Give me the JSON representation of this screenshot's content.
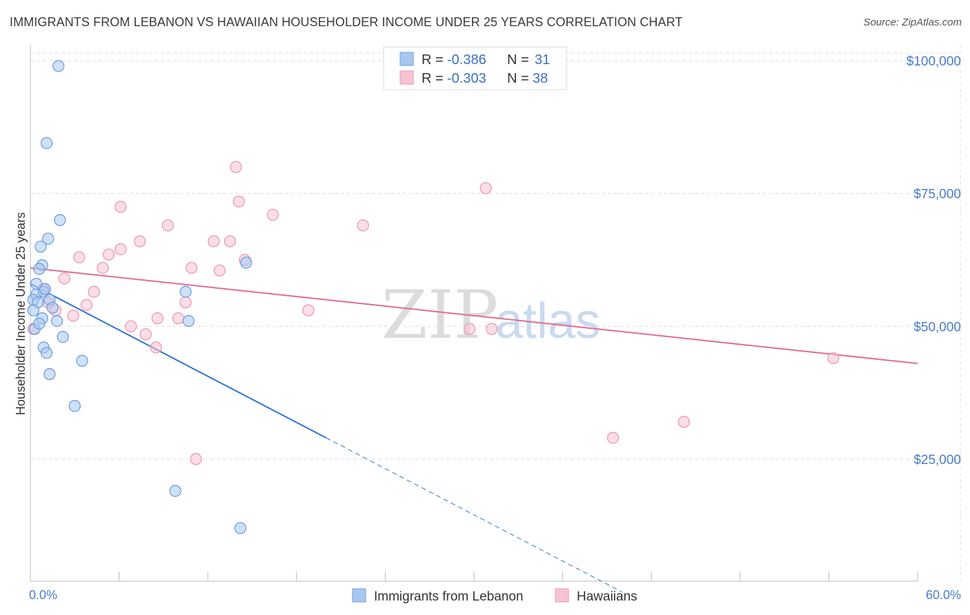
{
  "title": "IMMIGRANTS FROM LEBANON VS HAWAIIAN HOUSEHOLDER INCOME UNDER 25 YEARS CORRELATION CHART",
  "source": "Source: ZipAtlas.com",
  "watermark": {
    "zip": "ZIP",
    "atlas": "atlas"
  },
  "colors": {
    "lebanon_fill": "#a9c8f0",
    "lebanon_stroke": "#6a9ee0",
    "lebanon_line": "#2f72d1",
    "hawaiian_fill": "#f7c3d3",
    "hawaiian_stroke": "#eb97b2",
    "hawaiian_line": "#e06c96",
    "grid": "#dcdcdc",
    "axis_text": "#4a7cc9"
  },
  "legend": {
    "rows": [
      {
        "r_label": "R = ",
        "r_value": "-0.386",
        "n_label": "N = ",
        "n_value": "31"
      },
      {
        "r_label": "R = ",
        "r_value": "-0.303",
        "n_label": "N = ",
        "n_value": "38"
      }
    ]
  },
  "chart_data": {
    "type": "scatter",
    "title": "IMMIGRANTS FROM LEBANON VS HAWAIIAN HOUSEHOLDER INCOME UNDER 25 YEARS CORRELATION CHART",
    "xlabel": "",
    "ylabel": "Householder Income Under 25 years",
    "xlim": [
      0,
      60
    ],
    "ylim": [
      2000,
      103000
    ],
    "x_tick_labels": [
      "0.0%",
      "60.0%"
    ],
    "y_ticks": [
      {
        "value": 25000,
        "label": "$25,000"
      },
      {
        "value": 50000,
        "label": "$50,000"
      },
      {
        "value": 75000,
        "label": "$75,000"
      },
      {
        "value": 100000,
        "label": "$100,000"
      }
    ],
    "grid": true,
    "legend_position": "top-center",
    "series": [
      {
        "name": "Immigrants from Lebanon",
        "r": -0.386,
        "n": 31,
        "points": [
          [
            1.9,
            99000
          ],
          [
            1.1,
            84500
          ],
          [
            2.0,
            70000
          ],
          [
            1.2,
            66500
          ],
          [
            0.7,
            65000
          ],
          [
            0.8,
            61500
          ],
          [
            0.6,
            60800
          ],
          [
            0.4,
            56000
          ],
          [
            0.2,
            55000
          ],
          [
            0.9,
            56500
          ],
          [
            1.3,
            55000
          ],
          [
            0.5,
            54500
          ],
          [
            1.5,
            53500
          ],
          [
            0.2,
            53000
          ],
          [
            0.8,
            51500
          ],
          [
            1.8,
            51000
          ],
          [
            0.3,
            49500
          ],
          [
            2.2,
            48000
          ],
          [
            0.9,
            46000
          ],
          [
            1.1,
            45000
          ],
          [
            3.5,
            43500
          ],
          [
            1.3,
            41000
          ],
          [
            3.0,
            35000
          ],
          [
            9.8,
            19000
          ],
          [
            14.6,
            62000
          ],
          [
            10.5,
            56500
          ],
          [
            10.7,
            51000
          ],
          [
            14.2,
            12000
          ],
          [
            0.4,
            58000
          ],
          [
            1.0,
            57000
          ],
          [
            0.6,
            50500
          ]
        ],
        "trend": {
          "x0": 0,
          "y0": 58000,
          "x1": 20,
          "y1": 29000,
          "dash_to_x": 40
        }
      },
      {
        "name": "Hawaiians",
        "r": -0.303,
        "n": 38,
        "points": [
          [
            0.2,
            49500
          ],
          [
            0.9,
            57000
          ],
          [
            1.7,
            53000
          ],
          [
            2.3,
            59000
          ],
          [
            2.9,
            52000
          ],
          [
            3.3,
            63000
          ],
          [
            3.8,
            54000
          ],
          [
            4.3,
            56500
          ],
          [
            4.9,
            61000
          ],
          [
            5.3,
            63500
          ],
          [
            6.1,
            72500
          ],
          [
            6.1,
            64500
          ],
          [
            6.8,
            50000
          ],
          [
            7.4,
            66000
          ],
          [
            7.8,
            48500
          ],
          [
            8.5,
            46000
          ],
          [
            8.6,
            51500
          ],
          [
            9.3,
            69000
          ],
          [
            10.0,
            51500
          ],
          [
            10.5,
            54500
          ],
          [
            10.9,
            61000
          ],
          [
            12.4,
            66000
          ],
          [
            12.8,
            60500
          ],
          [
            13.5,
            66000
          ],
          [
            13.9,
            80000
          ],
          [
            14.1,
            73500
          ],
          [
            14.5,
            62500
          ],
          [
            16.4,
            71000
          ],
          [
            18.8,
            53000
          ],
          [
            22.5,
            69000
          ],
          [
            29.7,
            49500
          ],
          [
            30.8,
            76000
          ],
          [
            31.2,
            49500
          ],
          [
            39.4,
            29000
          ],
          [
            44.2,
            32000
          ],
          [
            54.3,
            44000
          ],
          [
            11.2,
            25000
          ],
          [
            1.2,
            54500
          ]
        ],
        "trend": {
          "x0": 0,
          "y0": 61000,
          "x1": 60,
          "y1": 43000
        }
      }
    ]
  }
}
